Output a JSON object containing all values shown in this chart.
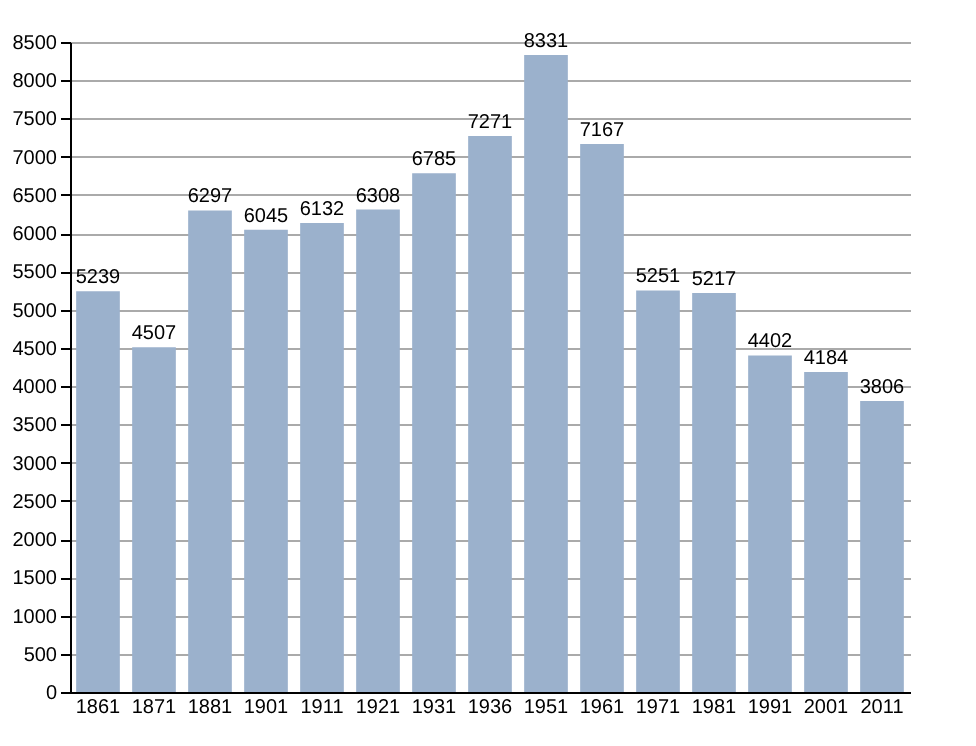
{
  "chart_data": {
    "type": "bar",
    "categories": [
      "1861",
      "1871",
      "1881",
      "1901",
      "1911",
      "1921",
      "1931",
      "1936",
      "1951",
      "1961",
      "1971",
      "1981",
      "1991",
      "2001",
      "2011"
    ],
    "values": [
      5239,
      4507,
      6297,
      6045,
      6132,
      6308,
      6785,
      7271,
      8331,
      7167,
      5251,
      5217,
      4402,
      4184,
      3806
    ],
    "color": "#9bb1cc",
    "ylim": [
      0,
      8500
    ],
    "yticks": [
      0,
      500,
      1000,
      1500,
      2000,
      2500,
      3000,
      3500,
      4000,
      4500,
      5000,
      5500,
      6000,
      6500,
      7000,
      7500,
      8000,
      8500
    ],
    "grid": "y",
    "data_labels": true
  }
}
